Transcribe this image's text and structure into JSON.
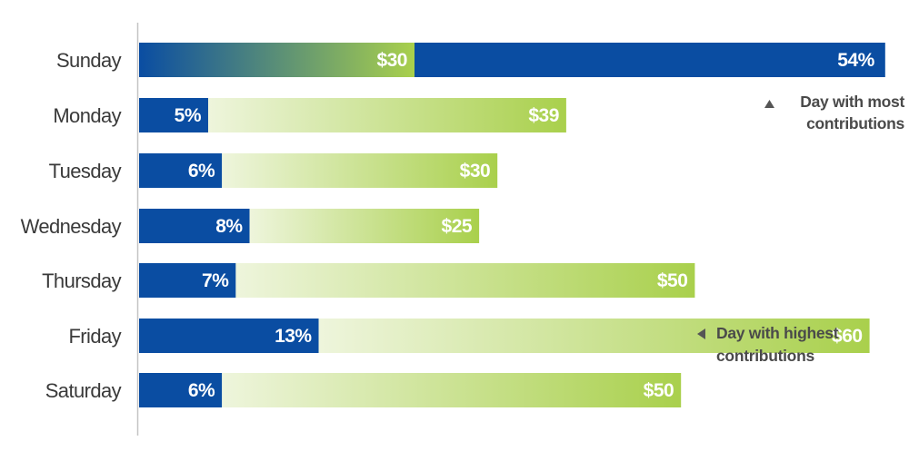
{
  "chart_data": {
    "type": "bar",
    "orientation": "horizontal",
    "stacked": true,
    "title": "",
    "xlabel": "",
    "ylabel": "",
    "categories": [
      "Sunday",
      "Monday",
      "Tuesday",
      "Wednesday",
      "Thursday",
      "Friday",
      "Saturday"
    ],
    "series": [
      {
        "values": [
          54,
          5,
          6,
          8,
          7,
          13,
          6
        ],
        "labels": [
          "54%",
          "5%",
          "6%",
          "8%",
          "7%",
          "13%",
          "6%"
        ],
        "color": "#0a4da2"
      },
      {
        "values": [
          30,
          39,
          30,
          25,
          50,
          60,
          50
        ],
        "labels": [
          "$30",
          "$39",
          "$30",
          "$25",
          "$50",
          "$60",
          "$50"
        ],
        "color": "#a9d04c"
      }
    ],
    "highlight_most": 0,
    "highlight_highest": 5,
    "annotations": {
      "most": {
        "line1": "Day with most",
        "line2": "contributions"
      },
      "highest": {
        "line1": "Day with highest",
        "line2": "contributions"
      }
    },
    "grid": false,
    "legend": "none"
  }
}
